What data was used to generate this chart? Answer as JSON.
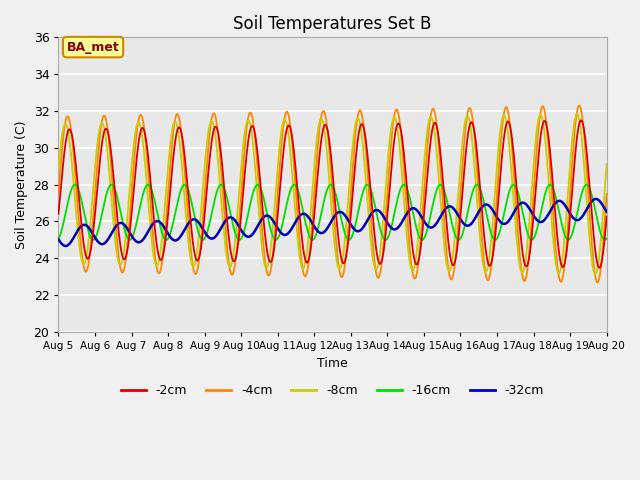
{
  "title": "Soil Temperatures Set B",
  "xlabel": "Time",
  "ylabel": "Soil Temperature (C)",
  "ylim": [
    20,
    36
  ],
  "yticks": [
    20,
    22,
    24,
    26,
    28,
    30,
    32,
    34,
    36
  ],
  "date_labels": [
    "Aug 5",
    "Aug 6",
    "Aug 7",
    "Aug 8",
    "Aug 9",
    "Aug 10",
    "Aug 11",
    "Aug 12",
    "Aug 13",
    "Aug 14",
    "Aug 15",
    "Aug 16",
    "Aug 17",
    "Aug 18",
    "Aug 19",
    "Aug 20"
  ],
  "series_colors": [
    "#dd0000",
    "#ff8800",
    "#cccc00",
    "#00dd00",
    "#0000bb"
  ],
  "series_labels": [
    "-2cm",
    "-4cm",
    "-8cm",
    "-16cm",
    "-32cm"
  ],
  "legend_label": "BA_met",
  "bg_color": "#e8e8e8",
  "n_days": 15,
  "points_per_day": 48
}
